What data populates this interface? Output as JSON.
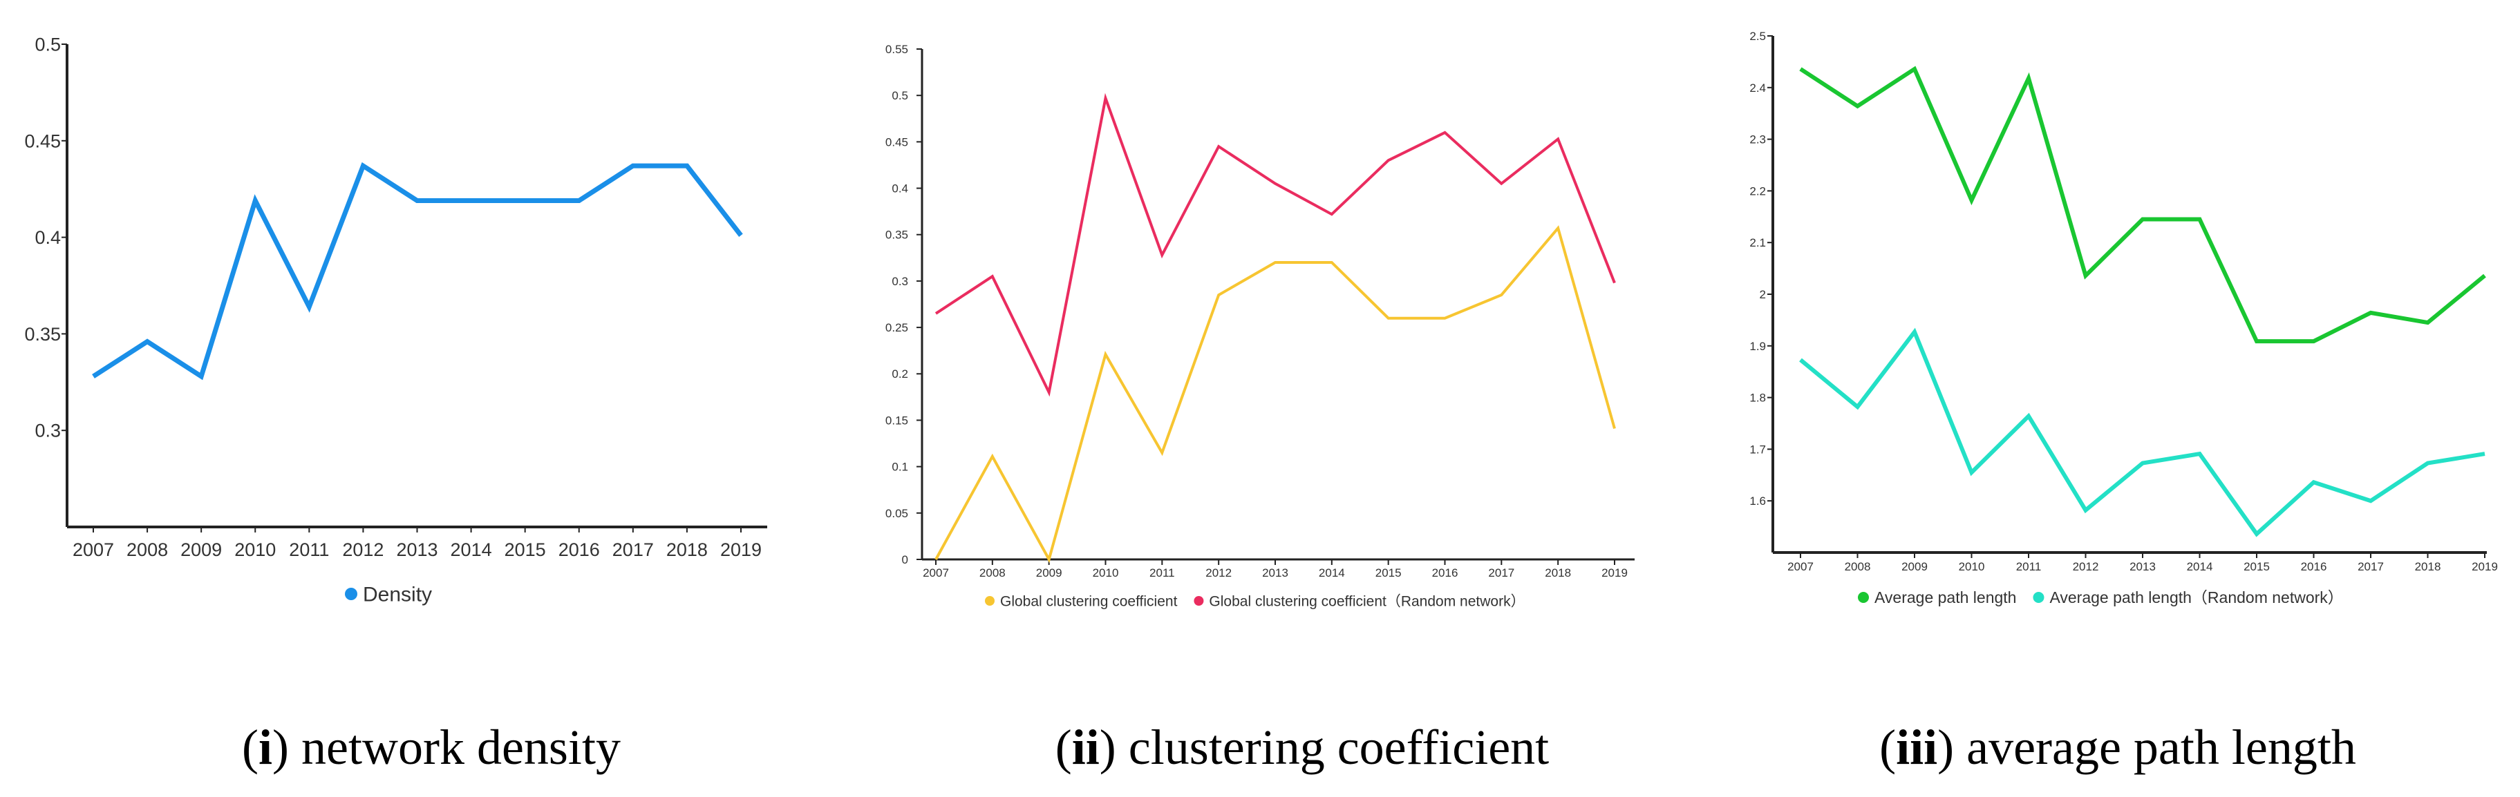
{
  "chart_data": [
    {
      "type": "line",
      "x": [
        "2007",
        "2008",
        "2009",
        "2010",
        "2011",
        "2012",
        "2013",
        "2014",
        "2015",
        "2016",
        "2017",
        "2018",
        "2019"
      ],
      "ylim": [
        0.25,
        0.5
      ],
      "yticks": [
        "0.5",
        "0.45",
        "0.4",
        "0.35",
        "0.3"
      ],
      "ytick_values": [
        0.5,
        0.45,
        0.4,
        0.35,
        0.3
      ],
      "series": [
        {
          "name": "Density",
          "color": "#1a8fe8",
          "values": [
            0.328,
            0.346,
            0.328,
            0.419,
            0.364,
            0.437,
            0.419,
            0.419,
            0.419,
            0.419,
            0.437,
            0.437,
            0.401
          ]
        }
      ],
      "legend": "bottom",
      "caption_num": "i",
      "caption_text": " network density"
    },
    {
      "type": "line",
      "x": [
        "2007",
        "2008",
        "2009",
        "2010",
        "2011",
        "2012",
        "2013",
        "2014",
        "2015",
        "2016",
        "2017",
        "2018",
        "2019"
      ],
      "ylim": [
        0,
        0.55
      ],
      "yticks": [
        "0.55",
        "0.5",
        "0.45",
        "0.4",
        "0.35",
        "0.3",
        "0.25",
        "0.2",
        "0.15",
        "0.1",
        "0.05",
        "0"
      ],
      "ytick_values": [
        0.55,
        0.5,
        0.45,
        0.4,
        0.35,
        0.3,
        0.25,
        0.2,
        0.15,
        0.1,
        0.05,
        0
      ],
      "series": [
        {
          "name": "Global clustering coefficient",
          "color": "#f7c531",
          "values": [
            0,
            0.111,
            0,
            0.221,
            0.115,
            0.285,
            0.32,
            0.32,
            0.26,
            0.26,
            0.285,
            0.357,
            0.141
          ]
        },
        {
          "name": "Global clustering coefficient（Random network）",
          "color": "#ea2c5f",
          "values": [
            0.265,
            0.305,
            0.18,
            0.497,
            0.328,
            0.445,
            0.405,
            0.372,
            0.43,
            0.46,
            0.405,
            0.453,
            0.298
          ]
        }
      ],
      "legend": "bottom",
      "caption_num": "ii",
      "caption_text": " clustering coefficient"
    },
    {
      "type": "line",
      "x": [
        "2007",
        "2008",
        "2009",
        "2010",
        "2011",
        "2012",
        "2013",
        "2014",
        "2015",
        "2016",
        "2017",
        "2018",
        "2019"
      ],
      "ylim": [
        1.5,
        2.5
      ],
      "yticks": [
        "2.5",
        "2.4",
        "2.3",
        "2.2",
        "2.1",
        "2",
        "1.9",
        "1.8",
        "1.7",
        "1.6"
      ],
      "ytick_values": [
        2.5,
        2.4,
        2.3,
        2.2,
        2.1,
        2.0,
        1.9,
        1.8,
        1.7,
        1.6
      ],
      "series": [
        {
          "name": "Average path length",
          "color": "#19c631",
          "values": [
            2.436,
            2.364,
            2.436,
            2.182,
            2.418,
            2.036,
            2.145,
            2.145,
            1.909,
            1.909,
            1.964,
            1.945,
            2.036
          ]
        },
        {
          "name": "Average path length（Random network）",
          "color": "#23e0c6",
          "values": [
            1.873,
            1.782,
            1.927,
            1.655,
            1.764,
            1.582,
            1.673,
            1.691,
            1.536,
            1.636,
            1.6,
            1.673,
            1.691
          ]
        }
      ],
      "legend": "bottom",
      "caption_num": "iii",
      "caption_text": " average path length"
    }
  ]
}
